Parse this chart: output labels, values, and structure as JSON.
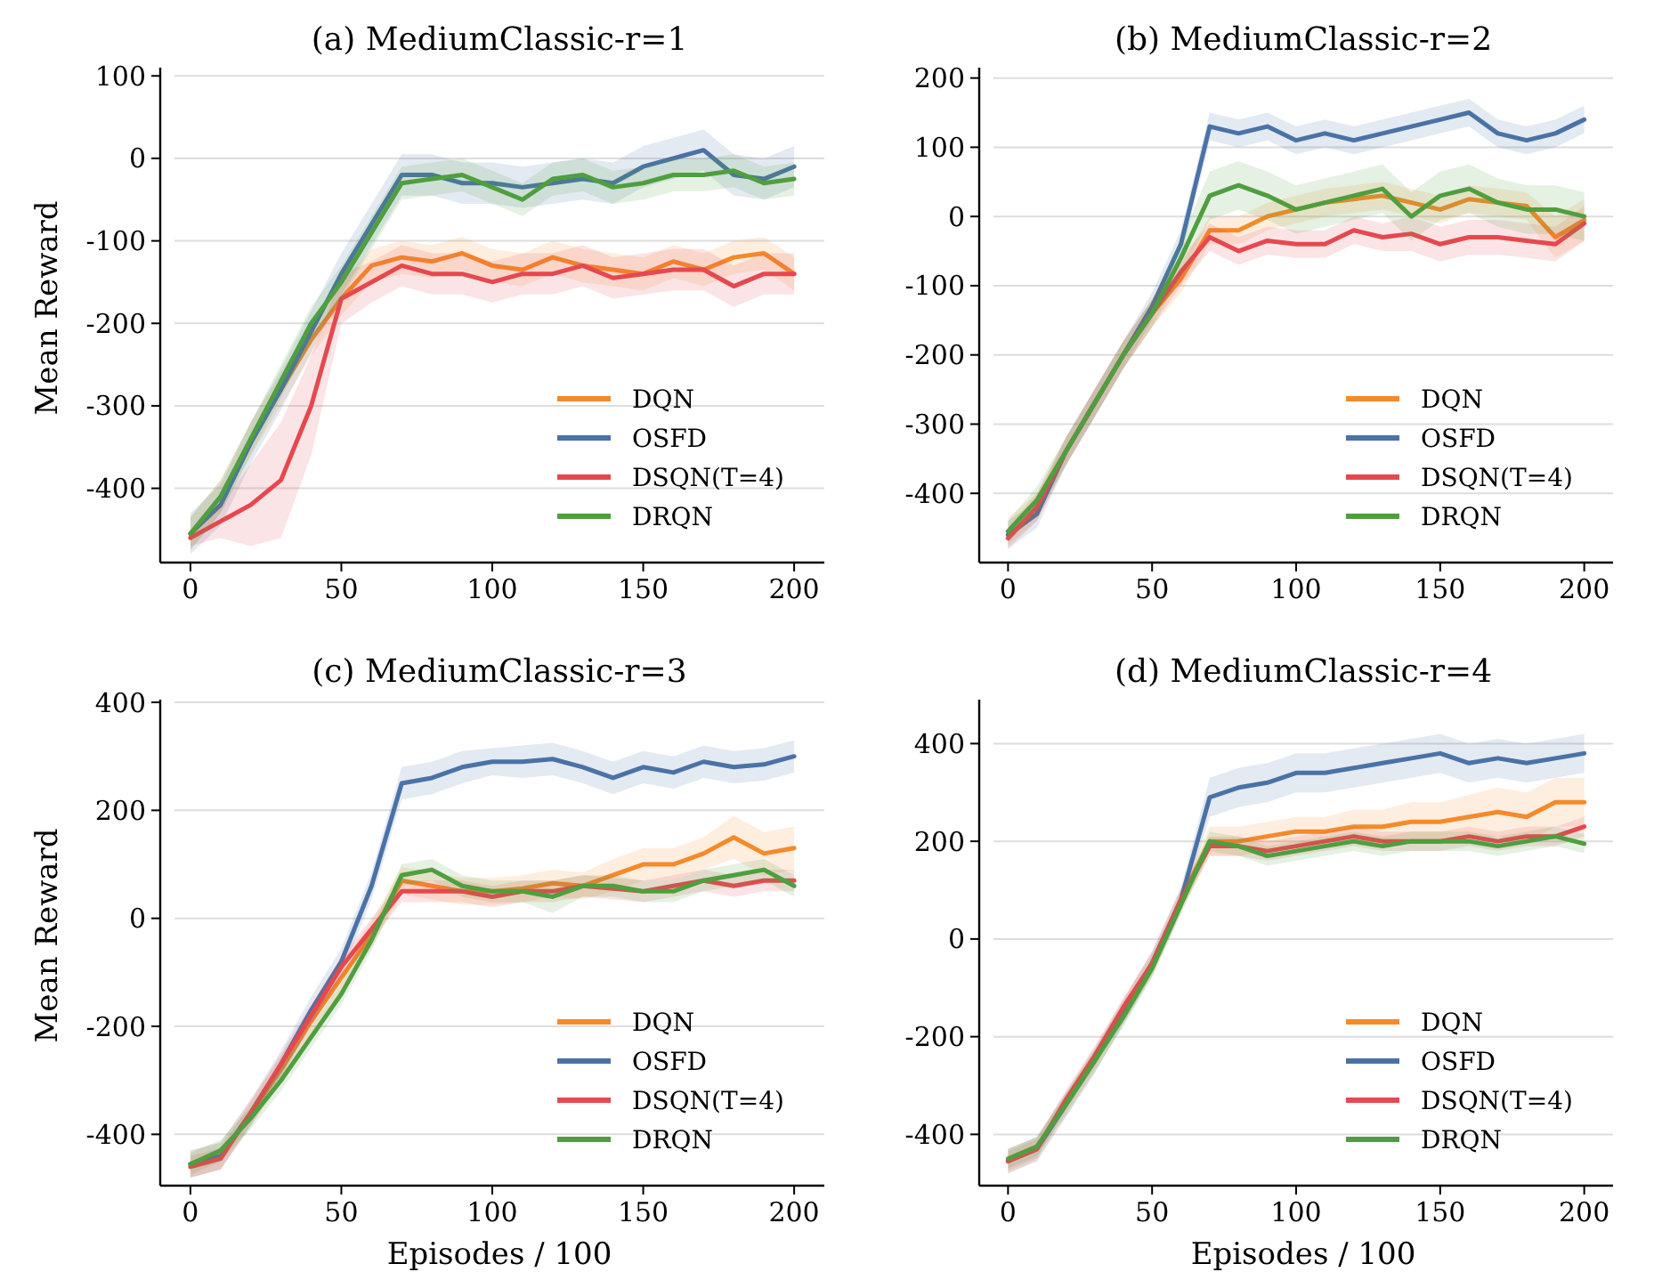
{
  "chart_data": [
    {
      "type": "line",
      "title": "(a) MediumClassic-r=1",
      "ylabel": "Mean Reward",
      "x": [
        0,
        10,
        20,
        30,
        40,
        50,
        60,
        70,
        80,
        90,
        100,
        110,
        120,
        130,
        140,
        150,
        160,
        170,
        180,
        190,
        200
      ],
      "xlim": [
        -10,
        210
      ],
      "xticks": [
        0,
        50,
        100,
        150,
        200
      ],
      "ylim": [
        -490,
        110
      ],
      "yticks": [
        -400,
        -300,
        -200,
        -100,
        0,
        100
      ],
      "grid": "y",
      "legend": "bottom right",
      "series": [
        {
          "name": "DQN",
          "color": "#f58a2a",
          "values": [
            null,
            null,
            -340,
            -280,
            -220,
            -170,
            -130,
            -120,
            -125,
            -115,
            -130,
            -135,
            -120,
            -130,
            -135,
            -140,
            -125,
            -135,
            -120,
            -115,
            -140
          ],
          "lower": [
            -475,
            -430,
            -360,
            -300,
            -240,
            -190,
            -150,
            -140,
            -145,
            -135,
            -150,
            -155,
            -140,
            -150,
            -155,
            -160,
            -145,
            -155,
            -140,
            -135,
            -160
          ],
          "upper": [
            -435,
            -390,
            -320,
            -260,
            -200,
            -150,
            -110,
            -100,
            -105,
            -95,
            -110,
            -115,
            -100,
            -110,
            -115,
            -120,
            -105,
            -115,
            -100,
            -95,
            -120
          ]
        },
        {
          "name": "OSFD",
          "color": "#4a72a6",
          "values": [
            -455,
            -420,
            -345,
            -280,
            -210,
            -140,
            -80,
            -20,
            -20,
            -30,
            -30,
            -35,
            -30,
            -25,
            -30,
            -10,
            0,
            10,
            -20,
            -25,
            -10
          ],
          "lower": [
            -480,
            -445,
            -370,
            -305,
            -235,
            -165,
            -105,
            -45,
            -45,
            -55,
            -55,
            -60,
            -55,
            -50,
            -55,
            -35,
            -25,
            -15,
            -45,
            -50,
            -35
          ],
          "upper": [
            -430,
            -395,
            -320,
            -255,
            -185,
            -115,
            -55,
            5,
            5,
            -5,
            -5,
            -10,
            -5,
            0,
            -5,
            15,
            25,
            35,
            5,
            0,
            15
          ]
        },
        {
          "name": "DSQN(T=4)",
          "color": "#e6484f",
          "values": [
            -460,
            -440,
            -420,
            -390,
            -300,
            -170,
            -150,
            -130,
            -140,
            -140,
            -150,
            -140,
            -140,
            -130,
            -145,
            -140,
            -135,
            -135,
            -155,
            -140,
            -140
          ],
          "lower": [
            -470,
            -460,
            -470,
            -460,
            -360,
            -200,
            -175,
            -155,
            -165,
            -165,
            -175,
            -165,
            -165,
            -155,
            -170,
            -165,
            -160,
            -160,
            -180,
            -165,
            -165
          ],
          "upper": [
            -450,
            -420,
            -370,
            -320,
            -240,
            -140,
            -125,
            -105,
            -115,
            -115,
            -125,
            -115,
            -115,
            -105,
            -120,
            -115,
            -110,
            -110,
            -130,
            -115,
            -115
          ]
        },
        {
          "name": "DRQN",
          "color": "#4f9e3f",
          "values": [
            -455,
            -410,
            -340,
            -270,
            -200,
            -150,
            -90,
            -30,
            -25,
            -20,
            -35,
            -50,
            -25,
            -20,
            -35,
            -30,
            -20,
            -20,
            -15,
            -30,
            -25
          ],
          "lower": [
            -475,
            -430,
            -360,
            -290,
            -220,
            -170,
            -110,
            -50,
            -45,
            -40,
            -55,
            -70,
            -45,
            -40,
            -55,
            -50,
            -40,
            -40,
            -35,
            -50,
            -45
          ],
          "upper": [
            -435,
            -390,
            -320,
            -250,
            -180,
            -130,
            -70,
            -10,
            -5,
            0,
            -15,
            -30,
            -5,
            0,
            -15,
            -10,
            0,
            0,
            5,
            -10,
            -5
          ]
        }
      ]
    },
    {
      "type": "line",
      "title": "(b) MediumClassic-r=2",
      "x": [
        0,
        10,
        20,
        30,
        40,
        50,
        60,
        70,
        80,
        90,
        100,
        110,
        120,
        130,
        140,
        150,
        160,
        170,
        180,
        190,
        200
      ],
      "xlim": [
        -10,
        210
      ],
      "xticks": [
        0,
        50,
        100,
        150,
        200
      ],
      "ylim": [
        -500,
        215
      ],
      "yticks": [
        -400,
        -300,
        -200,
        -100,
        0,
        100,
        200
      ],
      "grid": "y",
      "legend": "bottom right",
      "series": [
        {
          "name": "DQN",
          "color": "#f58a2a",
          "values": [
            null,
            null,
            null,
            null,
            -200,
            -140,
            -90,
            -20,
            -20,
            0,
            10,
            20,
            25,
            30,
            20,
            10,
            25,
            20,
            15,
            -30,
            -5
          ],
          "lower": [
            -475,
            -440,
            -360,
            -290,
            -220,
            -160,
            -110,
            -40,
            -40,
            -20,
            -10,
            0,
            5,
            10,
            0,
            -10,
            5,
            0,
            -5,
            -60,
            -35
          ],
          "upper": [
            -435,
            -400,
            -320,
            -250,
            -180,
            -120,
            -70,
            0,
            0,
            20,
            30,
            40,
            45,
            50,
            40,
            30,
            45,
            40,
            35,
            0,
            25
          ]
        },
        {
          "name": "OSFD",
          "color": "#4a72a6",
          "values": [
            -460,
            -430,
            -340,
            -270,
            -200,
            -130,
            -40,
            130,
            120,
            130,
            110,
            120,
            110,
            120,
            130,
            140,
            150,
            120,
            110,
            120,
            140
          ],
          "lower": [
            -480,
            -450,
            -360,
            -290,
            -220,
            -150,
            -60,
            110,
            100,
            110,
            90,
            100,
            90,
            100,
            110,
            120,
            130,
            100,
            90,
            100,
            120
          ],
          "upper": [
            -440,
            -410,
            -320,
            -250,
            -180,
            -110,
            -20,
            150,
            140,
            150,
            130,
            140,
            130,
            140,
            150,
            160,
            170,
            140,
            130,
            140,
            160
          ]
        },
        {
          "name": "DSQN(T=4)",
          "color": "#e6484f",
          "values": [
            -465,
            -420,
            -340,
            -270,
            -200,
            -140,
            -80,
            -30,
            -50,
            -35,
            -40,
            -40,
            -20,
            -30,
            -25,
            -40,
            -30,
            -30,
            -35,
            -40,
            -10
          ],
          "lower": [
            -480,
            -440,
            -360,
            -290,
            -220,
            -160,
            -100,
            -50,
            -70,
            -55,
            -60,
            -60,
            -40,
            -50,
            -50,
            -65,
            -55,
            -55,
            -60,
            -65,
            -35
          ],
          "upper": [
            -450,
            -400,
            -320,
            -250,
            -180,
            -120,
            -60,
            -10,
            -30,
            -15,
            -20,
            -20,
            0,
            -10,
            0,
            -15,
            -5,
            -5,
            -10,
            -15,
            15
          ]
        },
        {
          "name": "DRQN",
          "color": "#4f9e3f",
          "values": [
            -455,
            -410,
            -340,
            -270,
            -200,
            -140,
            -60,
            30,
            45,
            30,
            10,
            20,
            30,
            40,
            0,
            30,
            40,
            20,
            10,
            10,
            0
          ],
          "lower": [
            -470,
            -430,
            -360,
            -290,
            -220,
            -160,
            -85,
            -5,
            10,
            -5,
            -25,
            -15,
            -5,
            5,
            -35,
            -5,
            5,
            -15,
            -25,
            -25,
            -35
          ],
          "upper": [
            -440,
            -390,
            -320,
            -250,
            -180,
            -120,
            -35,
            65,
            80,
            65,
            45,
            55,
            65,
            75,
            35,
            65,
            75,
            55,
            45,
            45,
            35
          ]
        }
      ]
    },
    {
      "type": "line",
      "title": "(c) MediumClassic-r=3",
      "xlabel": "Episodes / 100",
      "ylabel": "Mean Reward",
      "x": [
        0,
        10,
        20,
        30,
        40,
        50,
        60,
        70,
        80,
        90,
        100,
        110,
        120,
        130,
        140,
        150,
        160,
        170,
        180,
        190,
        200
      ],
      "xlim": [
        -10,
        210
      ],
      "xticks": [
        0,
        50,
        100,
        150,
        200
      ],
      "ylim": [
        -495,
        405
      ],
      "yticks": [
        -400,
        -200,
        0,
        200,
        400
      ],
      "grid": "y",
      "legend": "bottom right",
      "series": [
        {
          "name": "DQN",
          "color": "#f58a2a",
          "values": [
            null,
            null,
            -360,
            -280,
            -190,
            -110,
            -30,
            70,
            60,
            50,
            50,
            55,
            65,
            60,
            80,
            100,
            100,
            120,
            150,
            120,
            130
          ],
          "lower": [
            -480,
            -465,
            -385,
            -305,
            -215,
            -135,
            -55,
            45,
            35,
            25,
            25,
            30,
            40,
            35,
            50,
            70,
            70,
            90,
            110,
            80,
            90
          ],
          "upper": [
            -430,
            -415,
            -335,
            -255,
            -165,
            -85,
            -5,
            95,
            85,
            75,
            75,
            80,
            90,
            85,
            110,
            130,
            130,
            150,
            190,
            160,
            170
          ]
        },
        {
          "name": "OSFD",
          "color": "#4a72a6",
          "values": [
            -455,
            -440,
            -360,
            -270,
            -170,
            -80,
            60,
            250,
            260,
            280,
            290,
            290,
            295,
            280,
            260,
            280,
            270,
            290,
            280,
            285,
            300
          ],
          "lower": [
            -480,
            -465,
            -385,
            -295,
            -195,
            -105,
            35,
            220,
            230,
            250,
            265,
            260,
            265,
            250,
            230,
            250,
            240,
            260,
            250,
            255,
            270
          ],
          "upper": [
            -430,
            -415,
            -335,
            -245,
            -145,
            -55,
            85,
            280,
            290,
            310,
            315,
            320,
            325,
            310,
            290,
            310,
            300,
            320,
            310,
            315,
            330
          ]
        },
        {
          "name": "DSQN(T=4)",
          "color": "#e6484f",
          "values": [
            -460,
            -445,
            -360,
            -270,
            -180,
            -90,
            -20,
            50,
            50,
            50,
            40,
            50,
            50,
            60,
            55,
            50,
            60,
            70,
            60,
            70,
            70
          ],
          "lower": [
            -480,
            -465,
            -380,
            -290,
            -200,
            -110,
            -40,
            30,
            30,
            30,
            20,
            30,
            30,
            40,
            35,
            30,
            40,
            50,
            40,
            50,
            50
          ],
          "upper": [
            -440,
            -425,
            -340,
            -250,
            -160,
            -70,
            0,
            70,
            70,
            70,
            60,
            70,
            70,
            80,
            75,
            70,
            80,
            90,
            80,
            90,
            90
          ]
        },
        {
          "name": "DRQN",
          "color": "#4f9e3f",
          "values": [
            -455,
            -430,
            -370,
            -300,
            -220,
            -140,
            -40,
            80,
            90,
            60,
            50,
            50,
            40,
            60,
            60,
            50,
            50,
            70,
            80,
            90,
            60
          ],
          "lower": [
            -475,
            -450,
            -390,
            -320,
            -240,
            -160,
            -60,
            60,
            70,
            40,
            30,
            30,
            10,
            40,
            40,
            30,
            30,
            50,
            60,
            70,
            40
          ],
          "upper": [
            -435,
            -410,
            -350,
            -280,
            -200,
            -120,
            -20,
            100,
            110,
            80,
            70,
            70,
            70,
            80,
            80,
            70,
            70,
            90,
            100,
            110,
            80
          ]
        }
      ]
    },
    {
      "type": "line",
      "title": "(d) MediumClassic-r=4",
      "xlabel": "Episodes / 100",
      "x": [
        0,
        10,
        20,
        30,
        40,
        50,
        60,
        70,
        80,
        90,
        100,
        110,
        120,
        130,
        140,
        150,
        160,
        170,
        180,
        190,
        200
      ],
      "xlim": [
        -10,
        210
      ],
      "xticks": [
        0,
        50,
        100,
        150,
        200
      ],
      "ylim": [
        -505,
        490
      ],
      "yticks": [
        -400,
        -200,
        0,
        200,
        400
      ],
      "grid": "y",
      "legend": "bottom right",
      "series": [
        {
          "name": "DQN",
          "color": "#f58a2a",
          "values": [
            null,
            null,
            null,
            -250,
            -150,
            -50,
            80,
            200,
            200,
            210,
            220,
            220,
            230,
            230,
            240,
            240,
            250,
            260,
            250,
            280,
            280
          ],
          "lower": [
            -480,
            -455,
            -365,
            -275,
            -175,
            -75,
            55,
            170,
            170,
            180,
            190,
            190,
            195,
            195,
            200,
            200,
            205,
            210,
            200,
            230,
            230
          ],
          "upper": [
            -430,
            -405,
            -315,
            -225,
            -125,
            -25,
            105,
            230,
            230,
            240,
            250,
            250,
            265,
            265,
            280,
            280,
            295,
            310,
            300,
            330,
            330
          ]
        },
        {
          "name": "OSFD",
          "color": "#4a72a6",
          "values": [
            -455,
            -430,
            -340,
            -250,
            -150,
            -50,
            80,
            290,
            310,
            320,
            340,
            340,
            350,
            360,
            370,
            380,
            360,
            370,
            360,
            370,
            380
          ],
          "lower": [
            -480,
            -455,
            -365,
            -275,
            -175,
            -75,
            55,
            250,
            270,
            280,
            300,
            300,
            310,
            320,
            330,
            340,
            320,
            330,
            320,
            330,
            340
          ],
          "upper": [
            -430,
            -405,
            -315,
            -225,
            -125,
            -25,
            105,
            330,
            350,
            360,
            380,
            380,
            390,
            400,
            410,
            420,
            400,
            410,
            400,
            410,
            420
          ]
        },
        {
          "name": "DSQN(T=4)",
          "color": "#e6484f",
          "values": [
            -455,
            -430,
            -330,
            -240,
            -140,
            -50,
            80,
            190,
            190,
            180,
            190,
            200,
            210,
            200,
            200,
            200,
            210,
            200,
            210,
            210,
            230
          ],
          "lower": [
            -475,
            -450,
            -350,
            -260,
            -160,
            -70,
            60,
            170,
            170,
            160,
            170,
            180,
            190,
            180,
            180,
            180,
            190,
            180,
            190,
            190,
            210
          ],
          "upper": [
            -435,
            -410,
            -310,
            -220,
            -120,
            -30,
            100,
            210,
            210,
            200,
            210,
            220,
            230,
            220,
            220,
            220,
            230,
            220,
            230,
            230,
            250
          ]
        },
        {
          "name": "DRQN",
          "color": "#4f9e3f",
          "values": [
            -450,
            -425,
            -340,
            -250,
            -160,
            -60,
            70,
            200,
            190,
            170,
            180,
            190,
            200,
            190,
            200,
            200,
            200,
            190,
            200,
            210,
            195
          ],
          "lower": [
            -470,
            -445,
            -360,
            -270,
            -180,
            -80,
            50,
            180,
            170,
            150,
            160,
            170,
            180,
            170,
            180,
            180,
            180,
            170,
            180,
            190,
            175
          ],
          "upper": [
            -430,
            -405,
            -320,
            -230,
            -140,
            -40,
            90,
            220,
            210,
            190,
            200,
            210,
            220,
            210,
            220,
            220,
            220,
            210,
            220,
            230,
            215
          ]
        }
      ]
    }
  ]
}
